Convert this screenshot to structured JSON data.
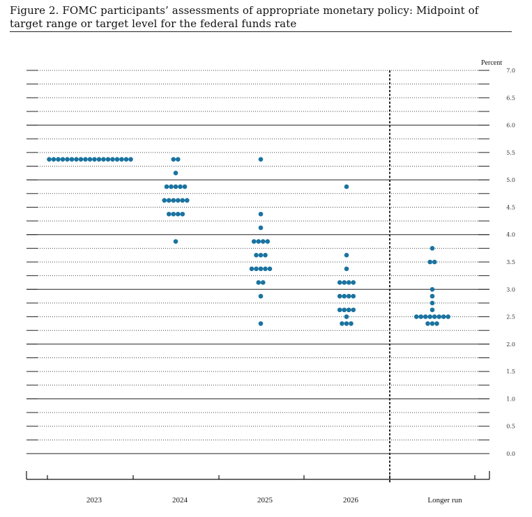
{
  "figure": {
    "title": "Figure 2.  FOMC participants’ assessments of appropriate monetary policy:  Midpoint of target range or target level for the federal funds rate"
  },
  "chart_data": {
    "type": "scatter",
    "subtype": "dot-plot",
    "title": "Figure 2.  FOMC participants’ assessments of appropriate monetary policy:  Midpoint of target range or target level for the federal funds rate",
    "ylabel": "Percent",
    "ylim": [
      0,
      7
    ],
    "yticks": [
      "0.0",
      "0.5",
      "1.0",
      "1.5",
      "2.0",
      "2.5",
      "3.0",
      "3.5",
      "4.0",
      "4.5",
      "5.0",
      "5.5",
      "6.0",
      "6.5",
      "7.0"
    ],
    "categories": [
      "2023",
      "2024",
      "2025",
      "2026",
      "Longer run"
    ],
    "dot_color": "#1a73a0",
    "separator_before": "Longer run",
    "dots": [
      {
        "category": "2023",
        "points": [
          {
            "y": 5.375,
            "count": 19
          }
        ]
      },
      {
        "category": "2024",
        "points": [
          {
            "y": 5.375,
            "count": 2
          },
          {
            "y": 5.125,
            "count": 1
          },
          {
            "y": 4.875,
            "count": 5
          },
          {
            "y": 4.625,
            "count": 6
          },
          {
            "y": 4.375,
            "count": 4
          },
          {
            "y": 3.875,
            "count": 1
          }
        ]
      },
      {
        "category": "2025",
        "points": [
          {
            "y": 5.375,
            "count": 1
          },
          {
            "y": 4.375,
            "count": 1
          },
          {
            "y": 4.125,
            "count": 1
          },
          {
            "y": 3.875,
            "count": 4
          },
          {
            "y": 3.625,
            "count": 3
          },
          {
            "y": 3.375,
            "count": 5
          },
          {
            "y": 3.125,
            "count": 2
          },
          {
            "y": 2.875,
            "count": 1
          },
          {
            "y": 2.375,
            "count": 1
          }
        ]
      },
      {
        "category": "2026",
        "points": [
          {
            "y": 4.875,
            "count": 1
          },
          {
            "y": 3.625,
            "count": 1
          },
          {
            "y": 3.375,
            "count": 1
          },
          {
            "y": 3.125,
            "count": 4
          },
          {
            "y": 2.875,
            "count": 4
          },
          {
            "y": 2.625,
            "count": 4
          },
          {
            "y": 2.5,
            "count": 1
          },
          {
            "y": 2.375,
            "count": 3
          }
        ]
      },
      {
        "category": "Longer run",
        "points": [
          {
            "y": 3.75,
            "count": 1
          },
          {
            "y": 3.5,
            "count": 2
          },
          {
            "y": 3.0,
            "count": 1
          },
          {
            "y": 2.875,
            "count": 1
          },
          {
            "y": 2.75,
            "count": 1
          },
          {
            "y": 2.625,
            "count": 1
          },
          {
            "y": 2.5,
            "count": 8
          },
          {
            "y": 2.375,
            "count": 3
          }
        ]
      }
    ]
  }
}
